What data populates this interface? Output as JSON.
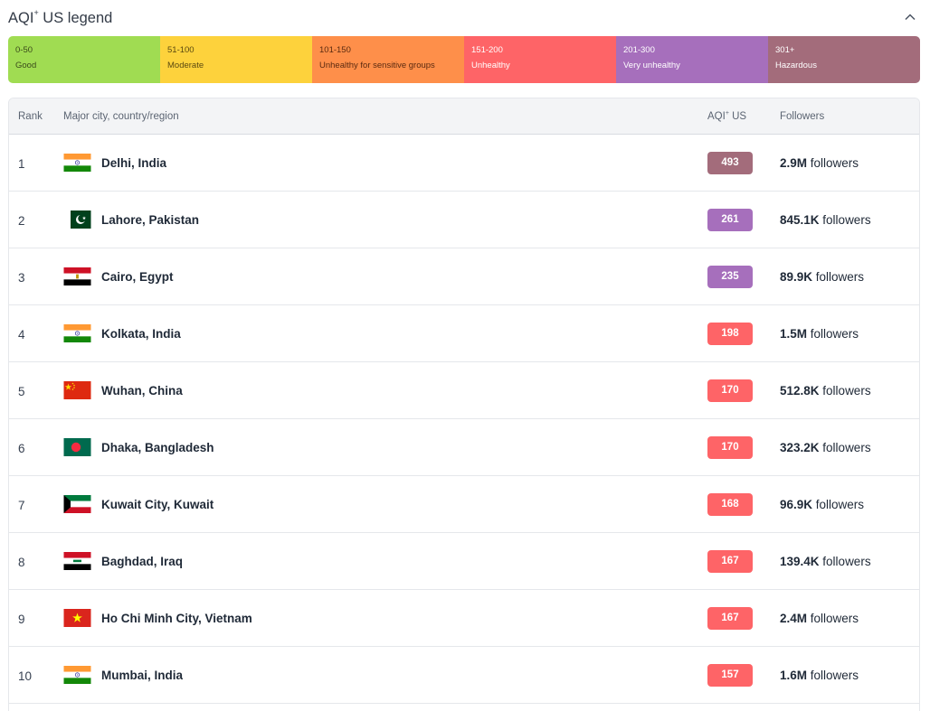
{
  "legend": {
    "title": "AQI",
    "title_sup": "+",
    "title_suffix": " US legend",
    "segments": [
      {
        "range": "0-50",
        "label": "Good",
        "color": "#a0dc52",
        "text_color": "#3a4a1a"
      },
      {
        "range": "51-100",
        "label": "Moderate",
        "color": "#fdd23c",
        "text_color": "#5b4a10"
      },
      {
        "range": "101-150",
        "label": "Unhealthy for sensitive groups",
        "color": "#fe8f4a",
        "text_color": "#5a2a10"
      },
      {
        "range": "151-200",
        "label": "Unhealthy",
        "color": "#fe6467",
        "text_color": "#ffffff"
      },
      {
        "range": "201-300",
        "label": "Very unhealthy",
        "color": "#a66fbc",
        "text_color": "#ffffff"
      },
      {
        "range": "301+",
        "label": "Hazardous",
        "color": "#a36c7b",
        "text_color": "#ffffff"
      }
    ]
  },
  "table": {
    "headers": {
      "rank": "Rank",
      "city": "Major city, country/region",
      "aqi": "AQI",
      "aqi_sup": "+",
      "aqi_suffix": " US",
      "followers": "Followers"
    },
    "rows": [
      {
        "rank": "1",
        "city": "Delhi, India",
        "flag": "india",
        "aqi": "493",
        "aqi_color": "#a36c7b",
        "followers_num": "2.9M",
        "followers_suffix": " followers"
      },
      {
        "rank": "2",
        "city": "Lahore, Pakistan",
        "flag": "pakistan",
        "aqi": "261",
        "aqi_color": "#a66fbc",
        "followers_num": "845.1K",
        "followers_suffix": " followers"
      },
      {
        "rank": "3",
        "city": "Cairo, Egypt",
        "flag": "egypt",
        "aqi": "235",
        "aqi_color": "#a66fbc",
        "followers_num": "89.9K",
        "followers_suffix": " followers"
      },
      {
        "rank": "4",
        "city": "Kolkata, India",
        "flag": "india",
        "aqi": "198",
        "aqi_color": "#fe6467",
        "followers_num": "1.5M",
        "followers_suffix": " followers"
      },
      {
        "rank": "5",
        "city": "Wuhan, China",
        "flag": "china",
        "aqi": "170",
        "aqi_color": "#fe6467",
        "followers_num": "512.8K",
        "followers_suffix": " followers"
      },
      {
        "rank": "6",
        "city": "Dhaka, Bangladesh",
        "flag": "bangladesh",
        "aqi": "170",
        "aqi_color": "#fe6467",
        "followers_num": "323.2K",
        "followers_suffix": " followers"
      },
      {
        "rank": "7",
        "city": "Kuwait City, Kuwait",
        "flag": "kuwait",
        "aqi": "168",
        "aqi_color": "#fe6467",
        "followers_num": "96.9K",
        "followers_suffix": " followers"
      },
      {
        "rank": "8",
        "city": "Baghdad, Iraq",
        "flag": "iraq",
        "aqi": "167",
        "aqi_color": "#fe6467",
        "followers_num": "139.4K",
        "followers_suffix": " followers"
      },
      {
        "rank": "9",
        "city": "Ho Chi Minh City, Vietnam",
        "flag": "vietnam",
        "aqi": "167",
        "aqi_color": "#fe6467",
        "followers_num": "2.4M",
        "followers_suffix": " followers"
      },
      {
        "rank": "10",
        "city": "Mumbai, India",
        "flag": "india",
        "aqi": "157",
        "aqi_color": "#fe6467",
        "followers_num": "1.6M",
        "followers_suffix": " followers"
      }
    ]
  }
}
